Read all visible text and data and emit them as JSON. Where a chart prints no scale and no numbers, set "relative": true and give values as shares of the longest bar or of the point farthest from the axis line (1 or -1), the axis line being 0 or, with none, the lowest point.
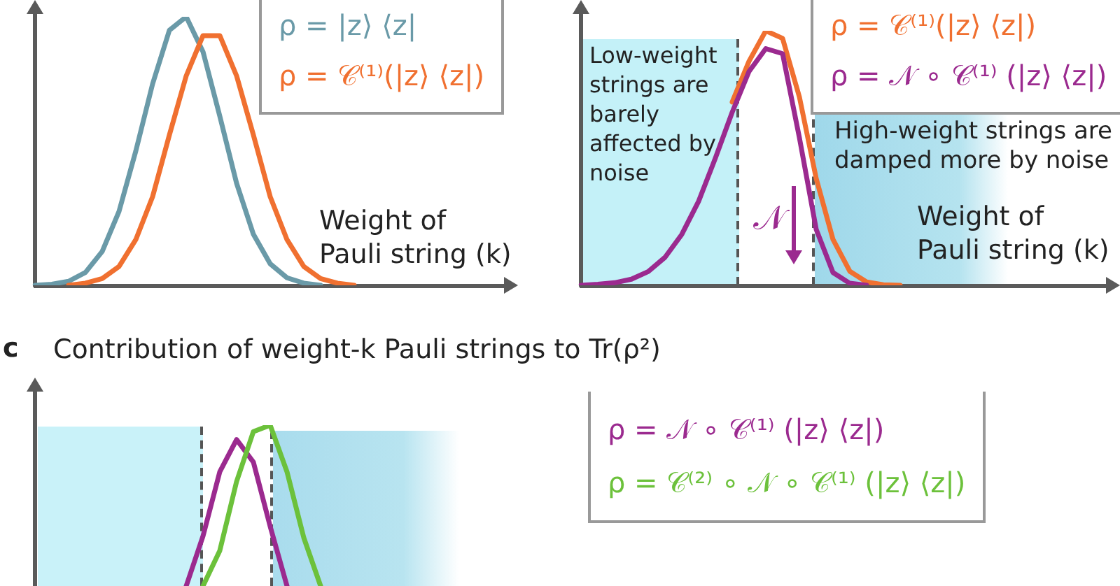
{
  "chart_data": [
    {
      "type": "line",
      "relative": true,
      "marker": "none",
      "legend": "top right",
      "xlabel": "Weight of Pauli string (k)",
      "categories": [
        null,
        null,
        null,
        null,
        null,
        null,
        null,
        null,
        null,
        null,
        null,
        null,
        null,
        null,
        null,
        null,
        null,
        null,
        null,
        null,
        null,
        null,
        null,
        null,
        null,
        null,
        null,
        null,
        null
      ],
      "series": [
        {
          "name": "ρ = |z⟩ ⟨z|",
          "color": "#6a9aa8",
          "values": [
            0,
            0.004,
            0.015,
            0.048,
            0.126,
            0.275,
            0.5,
            0.75,
            0.95,
            1,
            0.87,
            0.63,
            0.38,
            0.19,
            0.08,
            0.028,
            0.008,
            0,
            null,
            null,
            null,
            null,
            null,
            null,
            null,
            null,
            null,
            null,
            null
          ]
        },
        {
          "name": "ρ = 𝒞⁽¹⁾(|z⟩ ⟨z|)",
          "color": "#f07030",
          "values": [
            null,
            null,
            0,
            0.008,
            0.025,
            0.07,
            0.17,
            0.33,
            0.56,
            0.78,
            0.93,
            0.93,
            0.78,
            0.56,
            0.33,
            0.17,
            0.07,
            0.025,
            0.008,
            0,
            null,
            null,
            null,
            null,
            null,
            null,
            null,
            null,
            null
          ]
        }
      ]
    },
    {
      "type": "line",
      "relative": true,
      "marker": "none",
      "legend": "top right",
      "xlabel": "Weight of Pauli string (k)",
      "annotations": [
        "Low-weight strings are barely affected by noise",
        "High-weight strings are damped more by noise",
        "𝒩"
      ],
      "categories": [
        null,
        null,
        null,
        null,
        null,
        null,
        null,
        null,
        null,
        null,
        null,
        null,
        null,
        null,
        null,
        null,
        null,
        null,
        null,
        null,
        null,
        null,
        null,
        null,
        null,
        null,
        null,
        null,
        null,
        null,
        null,
        null
      ],
      "series": [
        {
          "name": "ρ = 𝒞⁽¹⁾(|z⟩ ⟨z|)",
          "color": "#f07030",
          "values": [
            null,
            null,
            null,
            null,
            null,
            null,
            null,
            null,
            null,
            0.72,
            0.88,
            1,
            0.97,
            0.74,
            0.42,
            0.18,
            0.055,
            0.013,
            0.002,
            0,
            null,
            null,
            null,
            null,
            null,
            null,
            null,
            null,
            null,
            null,
            null,
            null
          ]
        },
        {
          "name": "ρ = 𝒩 ∘ 𝒞⁽¹⁾ (|z⟩ ⟨z|)",
          "color": "#9b2a8f",
          "values": [
            0,
            0.004,
            0.01,
            0.024,
            0.054,
            0.11,
            0.2,
            0.33,
            0.5,
            0.68,
            0.84,
            0.93,
            0.91,
            0.58,
            0.22,
            0.05,
            0.008,
            0,
            null,
            null,
            null,
            null,
            null,
            null,
            null,
            null,
            null,
            null,
            null,
            null,
            null,
            null
          ]
        }
      ]
    },
    {
      "type": "line",
      "relative": true,
      "marker": "none",
      "legend": "right",
      "title": "Contribution of weight-k Pauli strings to Tr(ρ²)",
      "annotations": [
        "c"
      ],
      "categories": [
        null,
        null,
        null,
        null,
        null,
        null,
        null,
        null,
        null,
        null,
        null,
        null,
        null,
        null,
        null,
        null,
        null,
        null,
        null,
        null,
        null,
        null,
        null,
        null,
        null,
        null,
        null,
        null,
        null
      ],
      "series": [
        {
          "name": "ρ = 𝒩 ∘ 𝒞⁽¹⁾ (|z⟩ ⟨z|)",
          "color": "#9b2a8f",
          "values": [
            null,
            null,
            null,
            null,
            null,
            null,
            null,
            null,
            null,
            0,
            0.31,
            0.71,
            0.91,
            0.77,
            0.37,
            0,
            null,
            null,
            null,
            null,
            null,
            null,
            null,
            null,
            null,
            null,
            null,
            null,
            null
          ]
        },
        {
          "name": "ρ = 𝒞⁽²⁾ ∘ 𝒩 ∘ 𝒞⁽¹⁾ (|z⟩ ⟨z|)",
          "color": "#6cc13b",
          "values": [
            null,
            null,
            null,
            null,
            null,
            null,
            null,
            null,
            null,
            null,
            0,
            0.22,
            0.65,
            0.96,
            1,
            0.71,
            0.3,
            0,
            null,
            null,
            null,
            null,
            null,
            null,
            null,
            null,
            null,
            null,
            null
          ]
        }
      ]
    }
  ]
}
